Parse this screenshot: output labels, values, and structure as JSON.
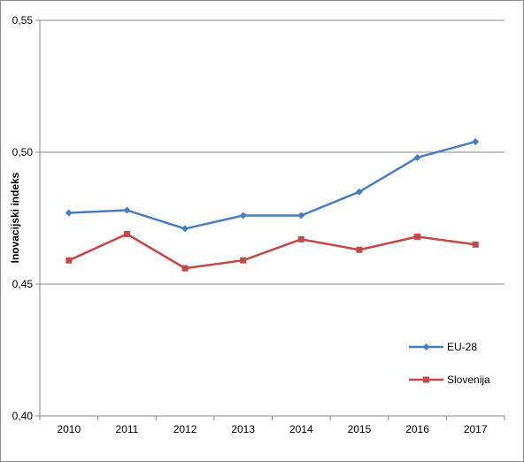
{
  "chart_data": {
    "type": "line",
    "title": "",
    "xlabel": "",
    "ylabel": "Inovacijski indeks",
    "categories": [
      "2010",
      "2011",
      "2012",
      "2013",
      "2014",
      "2015",
      "2016",
      "2017"
    ],
    "ylim": [
      0.4,
      0.55
    ],
    "yticks": [
      0.4,
      0.45,
      0.5,
      0.55
    ],
    "ytick_labels": [
      "0,40",
      "0,45",
      "0,50",
      "0,55"
    ],
    "grid": true,
    "legend_position": "right",
    "series": [
      {
        "name": "EU-28",
        "color": "#4a7ebb",
        "marker": "diamond",
        "values": [
          0.477,
          0.478,
          0.471,
          0.476,
          0.476,
          0.485,
          0.498,
          0.504
        ]
      },
      {
        "name": "Slovenija",
        "color": "#be4b48",
        "marker": "square",
        "values": [
          0.459,
          0.469,
          0.456,
          0.459,
          0.467,
          0.463,
          0.468,
          0.465
        ]
      }
    ]
  }
}
